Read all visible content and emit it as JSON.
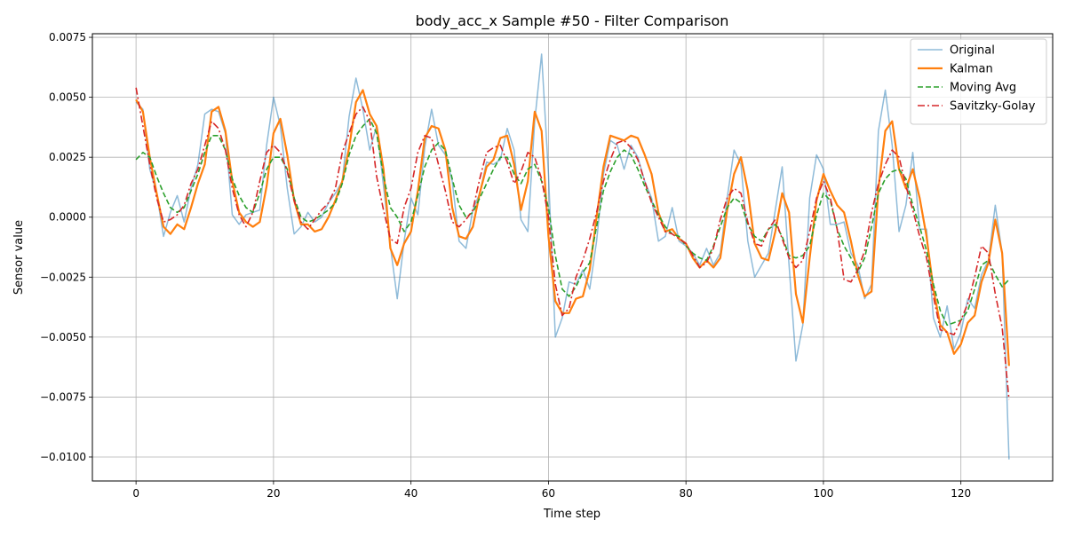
{
  "chart_data": {
    "type": "line",
    "title": "body_acc_x Sample #50 - Filter Comparison",
    "xlabel": "Time step",
    "ylabel": "Sensor value",
    "xlim": [
      -6.35,
      133.35
    ],
    "ylim": [
      -0.011,
      0.00765
    ],
    "xticks": [
      0,
      20,
      40,
      60,
      80,
      100,
      120
    ],
    "xtick_labels": [
      "0",
      "20",
      "40",
      "60",
      "80",
      "100",
      "120"
    ],
    "yticks": [
      -0.01,
      -0.0075,
      -0.005,
      -0.0025,
      0,
      0.0025,
      0.005,
      0.0075
    ],
    "ytick_labels": [
      "−0.0100",
      "−0.0075",
      "−0.0050",
      "−0.0025",
      "0.0000",
      "0.0025",
      "0.0050",
      "0.0075"
    ],
    "grid": true,
    "legend_position": "top-right",
    "series": [
      {
        "name": "Original",
        "color": "#1f77b4",
        "style": "solid",
        "values": [
          0.0048,
          0.0045,
          0.002,
          0.001,
          -0.0008,
          0.0002,
          0.0009,
          -0.0002,
          0.0012,
          0.0022,
          0.0043,
          0.0045,
          0.0044,
          0.0035,
          0.0001,
          -0.0003,
          0.0001,
          0.0002,
          0.0003,
          0.003,
          0.005,
          0.0038,
          0.0012,
          -0.0007,
          -0.0004,
          0.0002,
          -0.0002,
          0.0,
          0.0006,
          0.001,
          0.0015,
          0.0042,
          0.0058,
          0.0045,
          0.0028,
          0.0038,
          0.0013,
          -0.0012,
          -0.0034,
          -0.001,
          0.0008,
          0.0001,
          0.0029,
          0.0045,
          0.003,
          0.0026,
          0.0015,
          -0.001,
          -0.0013,
          0.0003,
          0.001,
          0.0023,
          0.0022,
          0.0024,
          0.0037,
          0.0028,
          -0.0001,
          -0.0006,
          0.004,
          0.0068,
          0.0018,
          -0.005,
          -0.0042,
          -0.0027,
          -0.0028,
          -0.0022,
          -0.003,
          -0.001,
          0.0018,
          0.0032,
          0.003,
          0.002,
          0.003,
          0.0025,
          0.0015,
          0.0008,
          -0.001,
          -0.0008,
          0.0004,
          -0.001,
          -0.0012,
          -0.0015,
          -0.002,
          -0.0013,
          -0.002,
          -0.0015,
          0.0008,
          0.0028,
          0.0022,
          -0.001,
          -0.0025,
          -0.002,
          -0.0015,
          0.0003,
          0.0021,
          -0.002,
          -0.006,
          -0.0045,
          0.0008,
          0.0026,
          0.002,
          -0.0003,
          -0.0003,
          -0.0002,
          -0.0015,
          -0.002,
          -0.0034,
          -0.0028,
          0.0036,
          0.0053,
          0.003,
          -0.0006,
          0.0005,
          0.0027,
          -0.0005,
          -0.0005,
          -0.0042,
          -0.005,
          -0.0037,
          -0.0055,
          -0.0048,
          -0.0034,
          -0.0038,
          -0.0024,
          -0.0018,
          0.0005,
          -0.0015,
          -0.0101
        ]
      },
      {
        "name": "Kalman",
        "color": "#ff7f0e",
        "style": "solid",
        "values": [
          0.0049,
          0.0044,
          0.0025,
          0.001,
          -0.0004,
          -0.0007,
          -0.0003,
          -0.0005,
          0.0004,
          0.0014,
          0.0022,
          0.0044,
          0.0046,
          0.0036,
          0.0015,
          0.0002,
          -0.0002,
          -0.0004,
          -0.0002,
          0.0013,
          0.0035,
          0.0041,
          0.0026,
          0.0007,
          -0.0003,
          -0.0003,
          -0.0006,
          -0.0005,
          0.0,
          0.0007,
          0.0015,
          0.0029,
          0.0048,
          0.0053,
          0.0043,
          0.0038,
          0.002,
          -0.0013,
          -0.002,
          -0.0011,
          -0.0006,
          0.0011,
          0.0033,
          0.0038,
          0.0037,
          0.0028,
          0.0004,
          -0.0008,
          -0.0009,
          -0.0004,
          0.001,
          0.0021,
          0.0024,
          0.0033,
          0.0034,
          0.0022,
          0.0003,
          0.0015,
          0.0044,
          0.0036,
          -0.0008,
          -0.0035,
          -0.004,
          -0.004,
          -0.0034,
          -0.0033,
          -0.0022,
          0.0,
          0.0021,
          0.0034,
          0.0033,
          0.0032,
          0.0034,
          0.0033,
          0.0026,
          0.0018,
          0.0002,
          -0.0006,
          -0.0005,
          -0.0009,
          -0.0011,
          -0.0017,
          -0.0021,
          -0.0018,
          -0.0021,
          -0.0017,
          0.0003,
          0.0018,
          0.0025,
          0.0011,
          -0.0011,
          -0.0017,
          -0.0018,
          -0.0006,
          0.001,
          0.0002,
          -0.0032,
          -0.0044,
          -0.0017,
          0.0007,
          0.0018,
          0.0011,
          0.0005,
          0.0002,
          -0.001,
          -0.0024,
          -0.0033,
          -0.0031,
          0.0012,
          0.0036,
          0.004,
          0.002,
          0.0012,
          0.002,
          0.0008,
          -0.0008,
          -0.003,
          -0.0045,
          -0.0048,
          -0.0057,
          -0.0053,
          -0.0044,
          -0.0041,
          -0.0027,
          -0.0019,
          -0.0001,
          -0.0015,
          -0.0062
        ]
      },
      {
        "name": "Moving Avg",
        "color": "#2ca02c",
        "style": "dashed",
        "values": [
          0.0024,
          0.0027,
          0.0025,
          0.0017,
          0.001,
          0.0004,
          0.0002,
          0.0004,
          0.0011,
          0.0018,
          0.0027,
          0.0034,
          0.0034,
          0.0028,
          0.0016,
          0.0009,
          0.0004,
          0.0002,
          0.001,
          0.002,
          0.0025,
          0.0025,
          0.002,
          0.0008,
          0.0,
          -0.0002,
          -0.0001,
          0.0001,
          0.0003,
          0.0006,
          0.0014,
          0.0026,
          0.0034,
          0.0038,
          0.0041,
          0.0035,
          0.0017,
          0.0004,
          0.0,
          -0.0006,
          -0.0002,
          0.0009,
          0.0021,
          0.0028,
          0.0031,
          0.0028,
          0.0016,
          0.0005,
          0.0,
          0.0002,
          0.0008,
          0.0014,
          0.002,
          0.0025,
          0.0025,
          0.0018,
          0.0014,
          0.002,
          0.0022,
          0.0015,
          0.0004,
          -0.0016,
          -0.003,
          -0.0033,
          -0.0029,
          -0.0023,
          -0.0019,
          -0.0004,
          0.0011,
          0.0019,
          0.0025,
          0.0028,
          0.0026,
          0.002,
          0.0013,
          0.0007,
          0.0001,
          -0.0004,
          -0.0007,
          -0.0008,
          -0.0012,
          -0.0015,
          -0.0017,
          -0.0018,
          -0.0012,
          -0.0004,
          0.0004,
          0.0008,
          0.0006,
          -0.0003,
          -0.0008,
          -0.001,
          -0.0005,
          -0.0003,
          -0.0008,
          -0.0016,
          -0.0017,
          -0.0016,
          -0.0012,
          0.0001,
          0.001,
          0.0007,
          -0.0005,
          -0.0012,
          -0.0017,
          -0.0023,
          -0.0017,
          -0.0004,
          0.001,
          0.0016,
          0.0019,
          0.002,
          0.0016,
          0.0005,
          -0.0004,
          -0.0014,
          -0.0028,
          -0.0039,
          -0.0045,
          -0.0044,
          -0.0043,
          -0.0039,
          -0.003,
          -0.002,
          -0.0018,
          -0.0024,
          -0.0029,
          -0.0026
        ]
      },
      {
        "name": "Savitzky-Golay",
        "color": "#d62728",
        "style": "dashdot",
        "values": [
          0.0054,
          0.0038,
          0.0022,
          0.0008,
          -0.0002,
          -0.0001,
          0.0001,
          0.0005,
          0.0014,
          0.002,
          0.003,
          0.004,
          0.0037,
          0.0028,
          0.0012,
          0.0001,
          -0.0004,
          0.0002,
          0.0015,
          0.0027,
          0.003,
          0.0027,
          0.0019,
          0.0007,
          -0.0002,
          -0.0005,
          -0.0001,
          0.0003,
          0.0006,
          0.0012,
          0.0027,
          0.0035,
          0.0043,
          0.0046,
          0.004,
          0.0017,
          0.0003,
          -0.0009,
          -0.0011,
          0.0004,
          0.0012,
          0.0027,
          0.0034,
          0.0033,
          0.0022,
          0.0011,
          -0.0002,
          -0.0004,
          -0.0001,
          0.0003,
          0.0016,
          0.0027,
          0.0029,
          0.003,
          0.0023,
          0.0014,
          0.0019,
          0.0027,
          0.0025,
          0.0016,
          0.0,
          -0.0028,
          -0.0041,
          -0.0038,
          -0.0025,
          -0.0018,
          -0.0009,
          0.0002,
          0.0015,
          0.0024,
          0.0031,
          0.0032,
          0.0029,
          0.0024,
          0.0015,
          0.0006,
          0.0,
          -0.0006,
          -0.0007,
          -0.0009,
          -0.0011,
          -0.0016,
          -0.0021,
          -0.0019,
          -0.0013,
          -0.0001,
          0.0008,
          0.0012,
          0.001,
          -0.0002,
          -0.0011,
          -0.0012,
          -0.0005,
          -0.0001,
          -0.0009,
          -0.0017,
          -0.0021,
          -0.0018,
          -0.0006,
          0.0008,
          0.0015,
          0.0008,
          -0.0005,
          -0.0026,
          -0.0027,
          -0.0022,
          -0.0014,
          0.0002,
          0.0014,
          0.0022,
          0.0028,
          0.0025,
          0.0013,
          0.0003,
          -0.0008,
          -0.0017,
          -0.0033,
          -0.0047,
          -0.0048,
          -0.0049,
          -0.0043,
          -0.0036,
          -0.0025,
          -0.0012,
          -0.0015,
          -0.0032,
          -0.0046,
          -0.0076
        ]
      }
    ]
  }
}
